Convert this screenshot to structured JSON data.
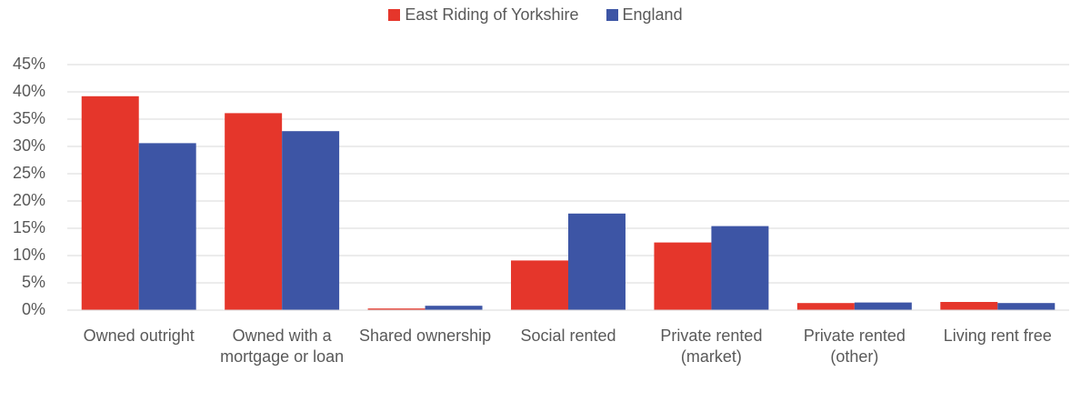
{
  "chart_data": {
    "type": "bar",
    "categories": [
      "Owned outright",
      "Owned with a mortgage or loan",
      "Shared ownership",
      "Social rented",
      "Private rented (market)",
      "Private rented (other)",
      "Living rent free"
    ],
    "series": [
      {
        "name": "East Riding of Yorkshire",
        "color": "#e5362b",
        "values": [
          39.2,
          36.1,
          0.3,
          9.1,
          12.4,
          1.3,
          1.5
        ]
      },
      {
        "name": "England",
        "color": "#3d55a5",
        "values": [
          30.6,
          32.8,
          0.8,
          17.7,
          15.4,
          1.4,
          1.3
        ]
      }
    ],
    "ylim": [
      0,
      45
    ],
    "yticks": [
      {
        "value": 0,
        "label": "0%"
      },
      {
        "value": 5,
        "label": "5%"
      },
      {
        "value": 10,
        "label": "10%"
      },
      {
        "value": 15,
        "label": "15%"
      },
      {
        "value": 20,
        "label": "20%"
      },
      {
        "value": 25,
        "label": "25%"
      },
      {
        "value": 30,
        "label": "30%"
      },
      {
        "value": 35,
        "label": "35%"
      },
      {
        "value": 40,
        "label": "40%"
      },
      {
        "value": 45,
        "label": "45%"
      }
    ],
    "grid": true,
    "legend": "top"
  }
}
